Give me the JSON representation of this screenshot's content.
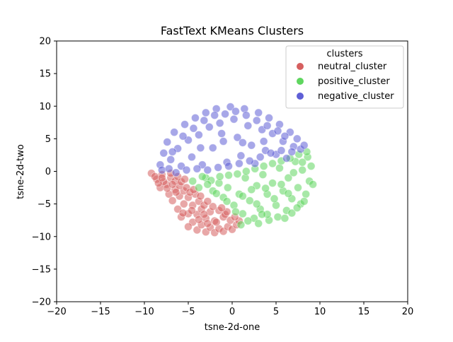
{
  "chart_data": {
    "type": "scatter",
    "title": "FastText KMeans Clusters",
    "xlabel": "tsne-2d-one",
    "ylabel": "tsne-2d-two",
    "xlim": [
      -20,
      20
    ],
    "ylim": [
      -20,
      20
    ],
    "xticks": [
      "−20",
      "−15",
      "−10",
      "−5",
      "0",
      "5",
      "10",
      "15",
      "20"
    ],
    "yticks": [
      "20",
      "15",
      "10",
      "5",
      "0",
      "−5",
      "−10",
      "−15",
      "−20"
    ],
    "grid": false,
    "legend": {
      "title": "clusters",
      "placement": "top-right"
    },
    "series": [
      {
        "name": "neutral_cluster",
        "color": "#d65f5f",
        "points": [
          [
            -9.2,
            -0.3
          ],
          [
            -8.6,
            -1.2
          ],
          [
            -8.0,
            -0.5
          ],
          [
            -7.5,
            -2.0
          ],
          [
            -8.2,
            -2.5
          ],
          [
            -7.0,
            -1.0
          ],
          [
            -6.5,
            -2.8
          ],
          [
            -7.2,
            -3.5
          ],
          [
            -6.8,
            -4.5
          ],
          [
            -6.0,
            -3.8
          ],
          [
            -5.5,
            -5.0
          ],
          [
            -6.2,
            -5.8
          ],
          [
            -5.0,
            -6.5
          ],
          [
            -5.8,
            -7.0
          ],
          [
            -4.5,
            -7.8
          ],
          [
            -5.0,
            -8.5
          ],
          [
            -4.0,
            -9.0
          ],
          [
            -3.5,
            -8.2
          ],
          [
            -3.0,
            -9.3
          ],
          [
            -2.5,
            -8.6
          ],
          [
            -2.0,
            -9.4
          ],
          [
            -1.5,
            -8.8
          ],
          [
            -1.0,
            -9.2
          ],
          [
            -0.5,
            -8.5
          ],
          [
            0.0,
            -8.9
          ],
          [
            0.5,
            -8.2
          ],
          [
            0.8,
            -7.6
          ],
          [
            -0.2,
            -7.5
          ],
          [
            -1.0,
            -7.0
          ],
          [
            -2.0,
            -7.6
          ],
          [
            -3.0,
            -7.2
          ],
          [
            -4.0,
            -6.6
          ],
          [
            -3.5,
            -5.8
          ],
          [
            -2.5,
            -6.2
          ],
          [
            -1.5,
            -6.0
          ],
          [
            -0.8,
            -6.6
          ],
          [
            -4.5,
            -5.2
          ],
          [
            -3.8,
            -4.6
          ],
          [
            -5.0,
            -4.0
          ],
          [
            -4.2,
            -3.5
          ],
          [
            -5.5,
            -3.0
          ],
          [
            -6.0,
            -2.2
          ],
          [
            -5.2,
            -2.5
          ],
          [
            -6.5,
            -1.5
          ],
          [
            -7.8,
            -1.6
          ],
          [
            -8.8,
            -0.8
          ],
          [
            -7.0,
            -0.3
          ],
          [
            -6.2,
            -0.8
          ],
          [
            -5.8,
            -1.6
          ],
          [
            -4.8,
            -3.2
          ],
          [
            -3.2,
            -5.2
          ],
          [
            -2.2,
            -5.4
          ],
          [
            -1.8,
            -7.8
          ],
          [
            -2.8,
            -8.0
          ],
          [
            -3.8,
            -7.4
          ],
          [
            -4.6,
            -6.0
          ],
          [
            -5.6,
            -6.4
          ],
          [
            -6.4,
            -3.2
          ],
          [
            -7.4,
            -2.6
          ],
          [
            -8.4,
            -1.8
          ],
          [
            0.3,
            -7.0
          ],
          [
            -0.6,
            -6.2
          ],
          [
            -1.2,
            -5.6
          ],
          [
            -2.8,
            -4.6
          ],
          [
            -3.6,
            -3.8
          ],
          [
            -4.4,
            -2.8
          ],
          [
            -5.4,
            -1.2
          ],
          [
            -6.8,
            -2.0
          ],
          [
            -8.0,
            -1.0
          ],
          [
            -3.2,
            -6.6
          ]
        ]
      },
      {
        "name": "positive_cluster",
        "color": "#5fd65f",
        "points": [
          [
            -4.5,
            -1.5
          ],
          [
            -3.8,
            -2.5
          ],
          [
            -3.0,
            -1.0
          ],
          [
            -2.2,
            -3.0
          ],
          [
            -1.5,
            -1.8
          ],
          [
            -1.0,
            -4.0
          ],
          [
            -0.5,
            -2.5
          ],
          [
            0.2,
            -5.2
          ],
          [
            0.8,
            -3.5
          ],
          [
            1.2,
            -6.5
          ],
          [
            1.5,
            -1.0
          ],
          [
            2.0,
            -4.5
          ],
          [
            2.5,
            -7.2
          ],
          [
            2.8,
            -2.2
          ],
          [
            3.2,
            -5.8
          ],
          [
            3.5,
            -0.5
          ],
          [
            4.0,
            -3.5
          ],
          [
            4.2,
            -7.5
          ],
          [
            4.6,
            -1.8
          ],
          [
            5.0,
            -5.2
          ],
          [
            5.4,
            0.5
          ],
          [
            5.8,
            -3.0
          ],
          [
            6.2,
            -6.0
          ],
          [
            6.4,
            -1.0
          ],
          [
            6.8,
            -4.2
          ],
          [
            7.2,
            1.5
          ],
          [
            7.5,
            -2.5
          ],
          [
            7.8,
            -5.0
          ],
          [
            8.0,
            0.2
          ],
          [
            8.4,
            -3.5
          ],
          [
            8.6,
            2.2
          ],
          [
            8.8,
            -1.5
          ],
          [
            9.0,
            0.8
          ],
          [
            9.2,
            -2.0
          ],
          [
            8.5,
            3.0
          ],
          [
            7.6,
            2.6
          ],
          [
            6.6,
            2.0
          ],
          [
            5.6,
            1.6
          ],
          [
            4.6,
            1.2
          ],
          [
            3.6,
            0.8
          ],
          [
            2.6,
            0.4
          ],
          [
            1.6,
            0.0
          ],
          [
            0.6,
            -0.4
          ],
          [
            -0.4,
            -0.6
          ],
          [
            -1.4,
            -0.8
          ],
          [
            -2.4,
            -1.4
          ],
          [
            -3.4,
            -0.8
          ],
          [
            -2.8,
            -2.0
          ],
          [
            -1.8,
            -3.4
          ],
          [
            -0.6,
            -4.6
          ],
          [
            0.4,
            -6.2
          ],
          [
            1.0,
            -8.2
          ],
          [
            1.8,
            -7.6
          ],
          [
            3.0,
            -8.0
          ],
          [
            4.0,
            -6.6
          ],
          [
            5.2,
            -7.0
          ],
          [
            6.0,
            -7.2
          ],
          [
            6.8,
            -6.4
          ],
          [
            7.4,
            -5.6
          ],
          [
            8.2,
            -4.6
          ],
          [
            3.8,
            -2.6
          ],
          [
            2.2,
            -2.8
          ],
          [
            1.2,
            -3.8
          ],
          [
            4.8,
            -4.2
          ],
          [
            5.6,
            -2.0
          ],
          [
            6.4,
            -3.4
          ],
          [
            7.0,
            -0.2
          ],
          [
            8.0,
            1.4
          ],
          [
            2.8,
            -5.0
          ],
          [
            3.4,
            -6.6
          ]
        ]
      },
      {
        "name": "negative_cluster",
        "color": "#5f5fd6",
        "points": [
          [
            -8.2,
            1.0
          ],
          [
            -7.8,
            2.8
          ],
          [
            -7.4,
            4.5
          ],
          [
            -7.0,
            1.8
          ],
          [
            -6.6,
            6.0
          ],
          [
            -6.2,
            3.5
          ],
          [
            -5.8,
            0.8
          ],
          [
            -5.4,
            7.2
          ],
          [
            -5.0,
            4.8
          ],
          [
            -4.6,
            2.2
          ],
          [
            -4.2,
            8.2
          ],
          [
            -3.8,
            5.6
          ],
          [
            -3.4,
            1.0
          ],
          [
            -3.0,
            9.0
          ],
          [
            -2.6,
            6.8
          ],
          [
            -2.2,
            3.6
          ],
          [
            -1.8,
            9.6
          ],
          [
            -1.4,
            7.4
          ],
          [
            -1.0,
            4.6
          ],
          [
            -0.6,
            1.4
          ],
          [
            -0.2,
            9.9
          ],
          [
            0.2,
            8.0
          ],
          [
            0.6,
            5.2
          ],
          [
            1.0,
            2.4
          ],
          [
            1.4,
            9.6
          ],
          [
            1.8,
            7.0
          ],
          [
            2.2,
            4.0
          ],
          [
            2.6,
            1.2
          ],
          [
            3.0,
            9.0
          ],
          [
            3.4,
            6.4
          ],
          [
            3.8,
            3.2
          ],
          [
            4.2,
            8.2
          ],
          [
            4.6,
            5.8
          ],
          [
            5.0,
            2.6
          ],
          [
            5.4,
            7.2
          ],
          [
            5.8,
            4.6
          ],
          [
            6.2,
            2.0
          ],
          [
            6.6,
            6.0
          ],
          [
            7.0,
            3.8
          ],
          [
            7.4,
            5.0
          ],
          [
            7.8,
            3.4
          ],
          [
            8.2,
            4.0
          ],
          [
            -8.0,
            0.2
          ],
          [
            -7.2,
            0.4
          ],
          [
            -6.4,
            -0.2
          ],
          [
            -5.2,
            0.2
          ],
          [
            -4.0,
            0.4
          ],
          [
            -2.8,
            0.2
          ],
          [
            -1.6,
            0.6
          ],
          [
            -0.4,
            0.8
          ],
          [
            0.8,
            1.2
          ],
          [
            2.0,
            1.6
          ],
          [
            3.2,
            2.2
          ],
          [
            4.4,
            2.8
          ],
          [
            5.6,
            3.2
          ],
          [
            6.8,
            3.0
          ],
          [
            -6.8,
            3.0
          ],
          [
            -5.6,
            5.4
          ],
          [
            -4.4,
            6.6
          ],
          [
            -3.2,
            7.8
          ],
          [
            -2.0,
            8.6
          ],
          [
            -0.8,
            8.8
          ],
          [
            0.4,
            9.2
          ],
          [
            1.6,
            8.6
          ],
          [
            2.8,
            7.8
          ],
          [
            4.0,
            7.0
          ],
          [
            5.2,
            6.2
          ],
          [
            -3.6,
            3.6
          ],
          [
            -1.2,
            5.8
          ],
          [
            1.2,
            4.4
          ],
          [
            3.6,
            4.6
          ],
          [
            6.0,
            5.4
          ]
        ]
      }
    ]
  }
}
